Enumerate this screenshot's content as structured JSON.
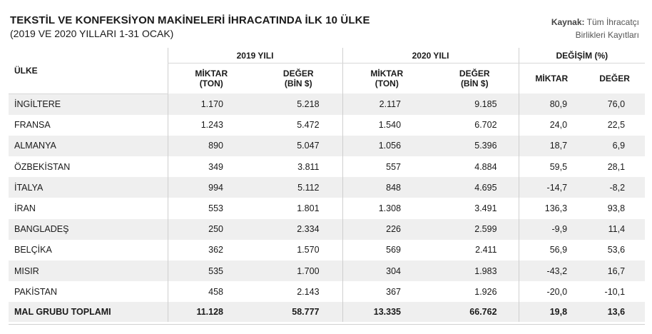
{
  "header": {
    "title": "TEKSTİL VE KONFEKSİYON MAKİNELERİ İHRACATINDA İLK 10 ÜLKE",
    "subtitle": "(2019 VE 2020 YILLARI 1-31 OCAK)",
    "source_label": "Kaynak:",
    "source_line1": "Tüm İhracatçı",
    "source_line2": "Birlikleri Kayıtları"
  },
  "table": {
    "country_header": "ÜLKE",
    "group_2019": "2019 YILI",
    "group_2020": "2020 YILI",
    "group_change": "DEĞİŞİM (%)",
    "miktar_l1": "MİKTAR",
    "miktar_l2": "(TON)",
    "deger_l1": "DEĞER",
    "deger_l2": "(BİN $)",
    "miktar_short": "MİKTAR",
    "deger_short": "DEĞER",
    "rows": [
      {
        "country": "İNGİLTERE",
        "m2019": "1.170",
        "d2019": "5.218",
        "m2020": "2.117",
        "d2020": "9.185",
        "cm": "80,9",
        "cd": "76,0"
      },
      {
        "country": "FRANSA",
        "m2019": "1.243",
        "d2019": "5.472",
        "m2020": "1.540",
        "d2020": "6.702",
        "cm": "24,0",
        "cd": "22,5"
      },
      {
        "country": "ALMANYA",
        "m2019": "890",
        "d2019": "5.047",
        "m2020": "1.056",
        "d2020": "5.396",
        "cm": "18,7",
        "cd": "6,9"
      },
      {
        "country": "ÖZBEKİSTAN",
        "m2019": "349",
        "d2019": "3.811",
        "m2020": "557",
        "d2020": "4.884",
        "cm": "59,5",
        "cd": "28,1"
      },
      {
        "country": "İTALYA",
        "m2019": "994",
        "d2019": "5.112",
        "m2020": "848",
        "d2020": "4.695",
        "cm": "-14,7",
        "cd": "-8,2"
      },
      {
        "country": "İRAN",
        "m2019": "553",
        "d2019": "1.801",
        "m2020": "1.308",
        "d2020": "3.491",
        "cm": "136,3",
        "cd": "93,8"
      },
      {
        "country": "BANGLADEŞ",
        "m2019": "250",
        "d2019": "2.334",
        "m2020": "226",
        "d2020": "2.599",
        "cm": "-9,9",
        "cd": "11,4"
      },
      {
        "country": "BELÇİKA",
        "m2019": "362",
        "d2019": "1.570",
        "m2020": "569",
        "d2020": "2.411",
        "cm": "56,9",
        "cd": "53,6"
      },
      {
        "country": "MISIR",
        "m2019": "535",
        "d2019": "1.700",
        "m2020": "304",
        "d2020": "1.983",
        "cm": "-43,2",
        "cd": "16,7"
      },
      {
        "country": "PAKİSTAN",
        "m2019": "458",
        "d2019": "2.143",
        "m2020": "367",
        "d2020": "1.926",
        "cm": "-20,0",
        "cd": "-10,1"
      }
    ],
    "total": {
      "country": "MAL GRUBU TOPLAMI",
      "m2019": "11.128",
      "d2019": "58.777",
      "m2020": "13.335",
      "d2020": "66.762",
      "cm": "19,8",
      "cd": "13,6"
    }
  }
}
